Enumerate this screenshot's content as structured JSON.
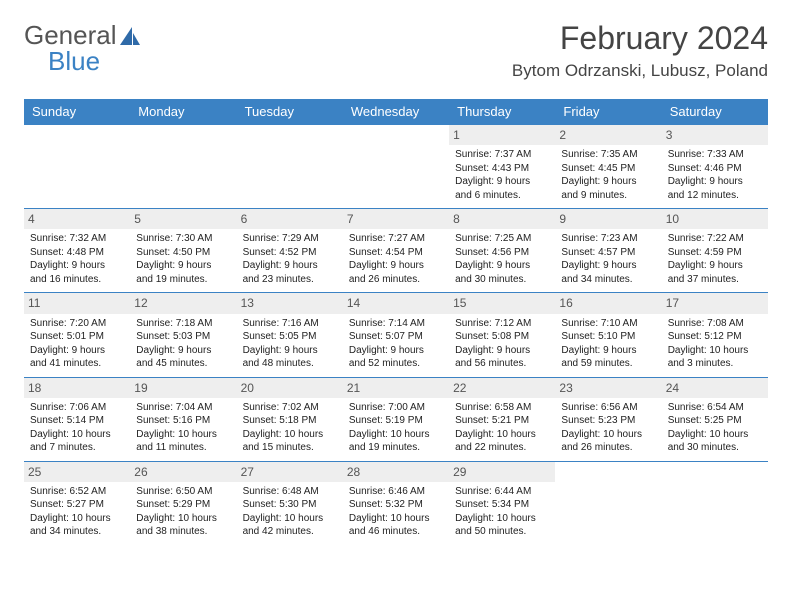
{
  "logo": {
    "word1": "General",
    "word2": "Blue"
  },
  "title": "February 2024",
  "location": "Bytom Odrzanski, Lubusz, Poland",
  "colors": {
    "header_bg": "#3b82c4",
    "header_text": "#ffffff",
    "day_num_bg": "#eeeeee",
    "day_num_text": "#555555",
    "cell_border": "#3b82c4",
    "body_text": "#222222",
    "title_text": "#444444",
    "logo_gray": "#555555",
    "logo_blue": "#3b82c4",
    "page_bg": "#ffffff"
  },
  "fonts": {
    "month_title_pt": 32,
    "location_pt": 17,
    "weekday_pt": 13,
    "daynum_pt": 12,
    "cell_pt": 10
  },
  "weekdays": [
    "Sunday",
    "Monday",
    "Tuesday",
    "Wednesday",
    "Thursday",
    "Friday",
    "Saturday"
  ],
  "weeks": [
    [
      null,
      null,
      null,
      null,
      {
        "n": "1",
        "sr": "Sunrise: 7:37 AM",
        "ss": "Sunset: 4:43 PM",
        "d1": "Daylight: 9 hours",
        "d2": "and 6 minutes."
      },
      {
        "n": "2",
        "sr": "Sunrise: 7:35 AM",
        "ss": "Sunset: 4:45 PM",
        "d1": "Daylight: 9 hours",
        "d2": "and 9 minutes."
      },
      {
        "n": "3",
        "sr": "Sunrise: 7:33 AM",
        "ss": "Sunset: 4:46 PM",
        "d1": "Daylight: 9 hours",
        "d2": "and 12 minutes."
      }
    ],
    [
      {
        "n": "4",
        "sr": "Sunrise: 7:32 AM",
        "ss": "Sunset: 4:48 PM",
        "d1": "Daylight: 9 hours",
        "d2": "and 16 minutes."
      },
      {
        "n": "5",
        "sr": "Sunrise: 7:30 AM",
        "ss": "Sunset: 4:50 PM",
        "d1": "Daylight: 9 hours",
        "d2": "and 19 minutes."
      },
      {
        "n": "6",
        "sr": "Sunrise: 7:29 AM",
        "ss": "Sunset: 4:52 PM",
        "d1": "Daylight: 9 hours",
        "d2": "and 23 minutes."
      },
      {
        "n": "7",
        "sr": "Sunrise: 7:27 AM",
        "ss": "Sunset: 4:54 PM",
        "d1": "Daylight: 9 hours",
        "d2": "and 26 minutes."
      },
      {
        "n": "8",
        "sr": "Sunrise: 7:25 AM",
        "ss": "Sunset: 4:56 PM",
        "d1": "Daylight: 9 hours",
        "d2": "and 30 minutes."
      },
      {
        "n": "9",
        "sr": "Sunrise: 7:23 AM",
        "ss": "Sunset: 4:57 PM",
        "d1": "Daylight: 9 hours",
        "d2": "and 34 minutes."
      },
      {
        "n": "10",
        "sr": "Sunrise: 7:22 AM",
        "ss": "Sunset: 4:59 PM",
        "d1": "Daylight: 9 hours",
        "d2": "and 37 minutes."
      }
    ],
    [
      {
        "n": "11",
        "sr": "Sunrise: 7:20 AM",
        "ss": "Sunset: 5:01 PM",
        "d1": "Daylight: 9 hours",
        "d2": "and 41 minutes."
      },
      {
        "n": "12",
        "sr": "Sunrise: 7:18 AM",
        "ss": "Sunset: 5:03 PM",
        "d1": "Daylight: 9 hours",
        "d2": "and 45 minutes."
      },
      {
        "n": "13",
        "sr": "Sunrise: 7:16 AM",
        "ss": "Sunset: 5:05 PM",
        "d1": "Daylight: 9 hours",
        "d2": "and 48 minutes."
      },
      {
        "n": "14",
        "sr": "Sunrise: 7:14 AM",
        "ss": "Sunset: 5:07 PM",
        "d1": "Daylight: 9 hours",
        "d2": "and 52 minutes."
      },
      {
        "n": "15",
        "sr": "Sunrise: 7:12 AM",
        "ss": "Sunset: 5:08 PM",
        "d1": "Daylight: 9 hours",
        "d2": "and 56 minutes."
      },
      {
        "n": "16",
        "sr": "Sunrise: 7:10 AM",
        "ss": "Sunset: 5:10 PM",
        "d1": "Daylight: 9 hours",
        "d2": "and 59 minutes."
      },
      {
        "n": "17",
        "sr": "Sunrise: 7:08 AM",
        "ss": "Sunset: 5:12 PM",
        "d1": "Daylight: 10 hours",
        "d2": "and 3 minutes."
      }
    ],
    [
      {
        "n": "18",
        "sr": "Sunrise: 7:06 AM",
        "ss": "Sunset: 5:14 PM",
        "d1": "Daylight: 10 hours",
        "d2": "and 7 minutes."
      },
      {
        "n": "19",
        "sr": "Sunrise: 7:04 AM",
        "ss": "Sunset: 5:16 PM",
        "d1": "Daylight: 10 hours",
        "d2": "and 11 minutes."
      },
      {
        "n": "20",
        "sr": "Sunrise: 7:02 AM",
        "ss": "Sunset: 5:18 PM",
        "d1": "Daylight: 10 hours",
        "d2": "and 15 minutes."
      },
      {
        "n": "21",
        "sr": "Sunrise: 7:00 AM",
        "ss": "Sunset: 5:19 PM",
        "d1": "Daylight: 10 hours",
        "d2": "and 19 minutes."
      },
      {
        "n": "22",
        "sr": "Sunrise: 6:58 AM",
        "ss": "Sunset: 5:21 PM",
        "d1": "Daylight: 10 hours",
        "d2": "and 22 minutes."
      },
      {
        "n": "23",
        "sr": "Sunrise: 6:56 AM",
        "ss": "Sunset: 5:23 PM",
        "d1": "Daylight: 10 hours",
        "d2": "and 26 minutes."
      },
      {
        "n": "24",
        "sr": "Sunrise: 6:54 AM",
        "ss": "Sunset: 5:25 PM",
        "d1": "Daylight: 10 hours",
        "d2": "and 30 minutes."
      }
    ],
    [
      {
        "n": "25",
        "sr": "Sunrise: 6:52 AM",
        "ss": "Sunset: 5:27 PM",
        "d1": "Daylight: 10 hours",
        "d2": "and 34 minutes."
      },
      {
        "n": "26",
        "sr": "Sunrise: 6:50 AM",
        "ss": "Sunset: 5:29 PM",
        "d1": "Daylight: 10 hours",
        "d2": "and 38 minutes."
      },
      {
        "n": "27",
        "sr": "Sunrise: 6:48 AM",
        "ss": "Sunset: 5:30 PM",
        "d1": "Daylight: 10 hours",
        "d2": "and 42 minutes."
      },
      {
        "n": "28",
        "sr": "Sunrise: 6:46 AM",
        "ss": "Sunset: 5:32 PM",
        "d1": "Daylight: 10 hours",
        "d2": "and 46 minutes."
      },
      {
        "n": "29",
        "sr": "Sunrise: 6:44 AM",
        "ss": "Sunset: 5:34 PM",
        "d1": "Daylight: 10 hours",
        "d2": "and 50 minutes."
      },
      null,
      null
    ]
  ]
}
